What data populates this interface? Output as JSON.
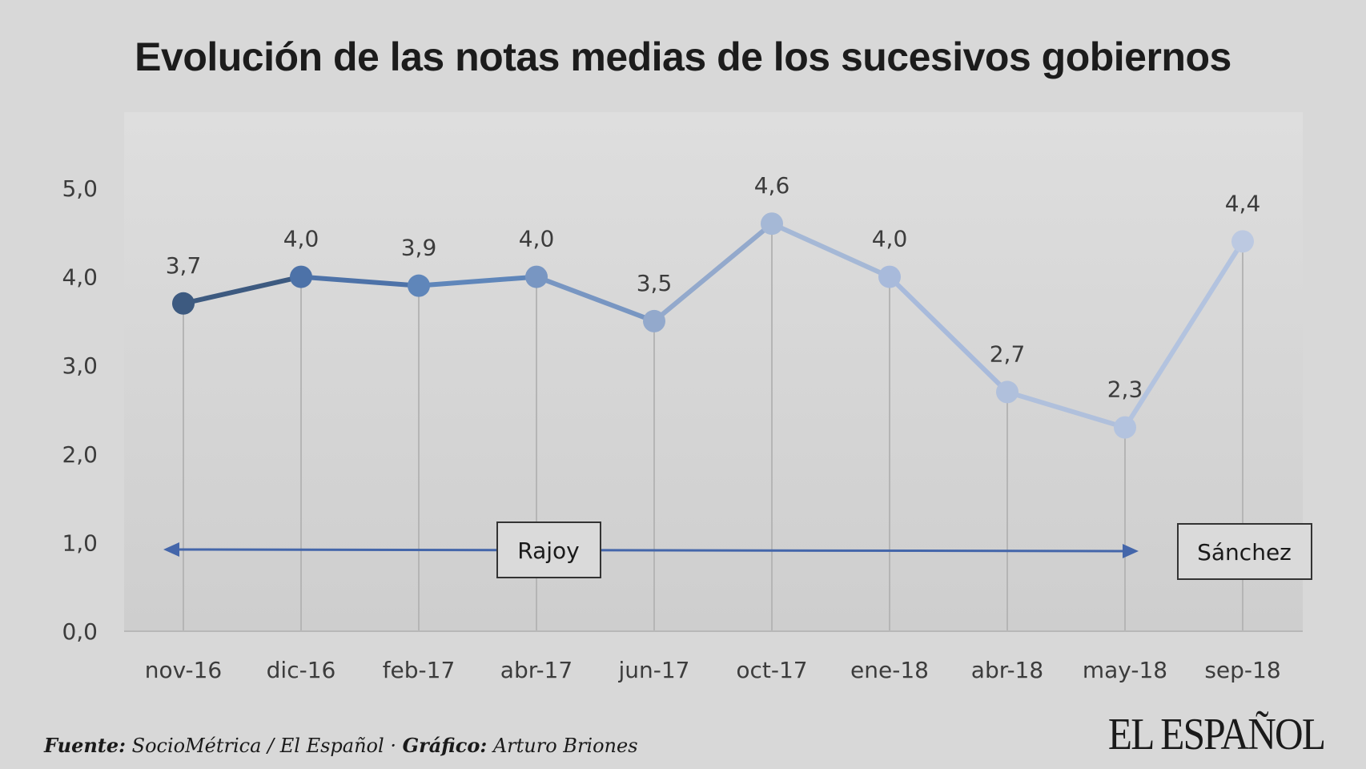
{
  "header": {
    "title": "Evolución de las notas medias de los sucesivos gobiernos"
  },
  "chart_data": {
    "type": "line",
    "title": "Evolución de las notas medias de los sucesivos gobiernos",
    "categories": [
      "nov-16",
      "dic-16",
      "feb-17",
      "abr-17",
      "jun-17",
      "oct-17",
      "ene-18",
      "abr-18",
      "may-18",
      "sep-18"
    ],
    "values": [
      3.7,
      4.0,
      3.9,
      4.0,
      3.5,
      4.6,
      4.0,
      2.7,
      2.3,
      4.4
    ],
    "value_labels": [
      "3,7",
      "4,0",
      "3,9",
      "4,0",
      "3,5",
      "4,6",
      "4,0",
      "2,7",
      "2,3",
      "4,4"
    ],
    "ylim": [
      0,
      5
    ],
    "y_ticks": [
      0,
      1,
      2,
      3,
      4,
      5
    ],
    "y_tick_labels": [
      "0,0",
      "1,0",
      "2,0",
      "3,0",
      "4,0",
      "5,0"
    ],
    "xlabel": "",
    "ylabel": "",
    "grid": "vertical drop lines",
    "legend": "none",
    "annotations": [
      {
        "label": "Rajoy",
        "from_category": "nov-16",
        "to_category": "may-18",
        "type": "double-arrow"
      },
      {
        "label": "Sánchez",
        "category": "sep-18",
        "type": "box"
      }
    ],
    "colors": {
      "point_gradient": [
        "#3d5a80",
        "#4d72a8",
        "#5f86ba",
        "#7896c2",
        "#93a9cc",
        "#a5b8d6",
        "#a8badb",
        "#b0c0dc",
        "#b3c3df",
        "#bcc9e1"
      ],
      "arrow": "#4466aa",
      "plot_bg_top": "#dedede",
      "plot_bg_bottom": "#cfcfcf",
      "drop_line": "#b5b5b5"
    }
  },
  "footer": {
    "source_label": "Fuente:",
    "source_text": "SocioMétrica / El Español",
    "separator": " · ",
    "graphic_label": "Gráfico:",
    "graphic_text": "Arturo Briones"
  },
  "brand": {
    "logo_text": "EL ESPAÑOL"
  }
}
